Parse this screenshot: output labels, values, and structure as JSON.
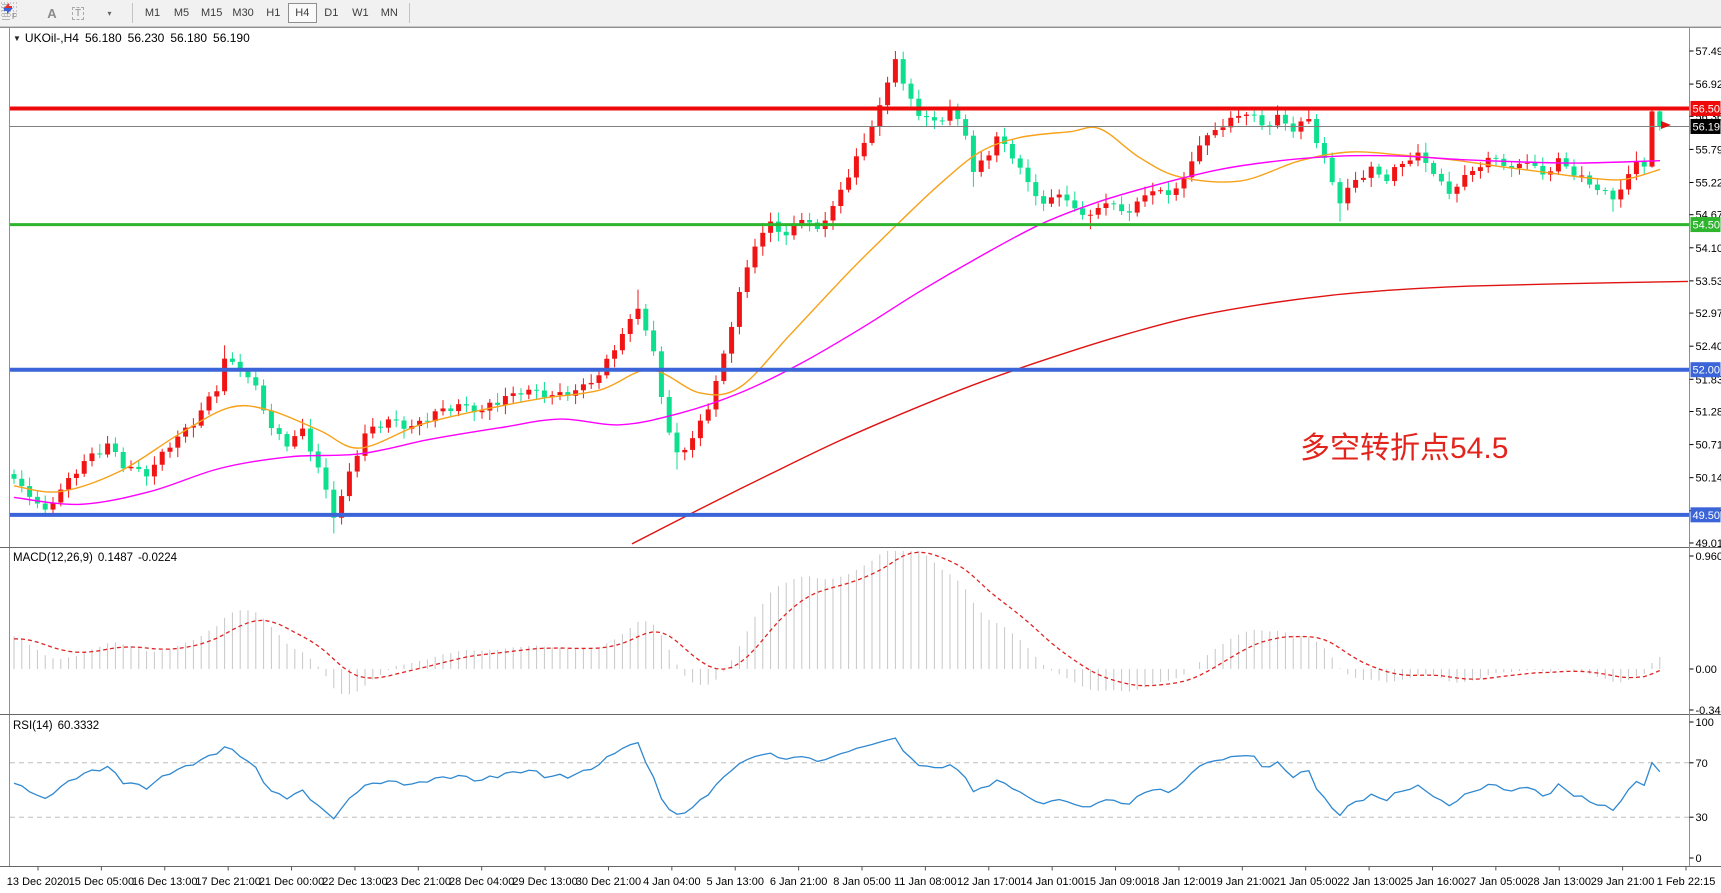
{
  "toolbar": {
    "fib_tool_label": "F",
    "text_tool_a": "A",
    "text_tool_t": "T",
    "dropdown_caret": "▾",
    "timeframes": [
      "M1",
      "M5",
      "M15",
      "M30",
      "H1",
      "H4",
      "D1",
      "W1",
      "MN"
    ],
    "active_timeframe": "H4"
  },
  "chart_header": {
    "collapse_icon": "▼",
    "symbol_period": "UKOil-,H4",
    "open": "56.180",
    "high": "56.230",
    "low": "56.180",
    "close": "56.190"
  },
  "annotation": {
    "text": "多空转折点54.5",
    "color": "#e3241c"
  },
  "price_axis": {
    "ticks": [
      "57.490",
      "56.920",
      "56.365",
      "55.795",
      "55.225",
      "54.670",
      "54.100",
      "53.530",
      "52.975",
      "52.405",
      "51.835",
      "51.280",
      "50.710",
      "50.140",
      "49.570",
      "49.015"
    ],
    "boxes": [
      {
        "label": "56.500",
        "price": 56.5,
        "color": "#ee0a0a",
        "text_color": "#ffffff"
      },
      {
        "label": "56.190",
        "price": 56.19,
        "color": "#000000",
        "text_color": "#ffffff"
      },
      {
        "label": "54.500",
        "price": 54.5,
        "color": "#2db52d",
        "text_color": "#ffffff"
      },
      {
        "label": "52.000",
        "price": 52.0,
        "color": "#3a64d8",
        "text_color": "#ffffff"
      },
      {
        "label": "49.500",
        "price": 49.5,
        "color": "#3a64d8",
        "text_color": "#ffffff"
      }
    ]
  },
  "time_axis": {
    "labels": [
      "13 Dec 2020",
      "15 Dec 05:00",
      "16 Dec 13:00",
      "17 Dec 21:00",
      "21 Dec 00:00",
      "22 Dec 13:00",
      "23 Dec 21:00",
      "28 Dec 04:00",
      "29 Dec 13:00",
      "30 Dec 21:00",
      "4 Jan 04:00",
      "5 Jan 13:00",
      "6 Jan 21:00",
      "8 Jan 05:00",
      "11 Jan 08:00",
      "12 Jan 17:00",
      "14 Jan 01:00",
      "15 Jan 09:00",
      "18 Jan 12:00",
      "19 Jan 21:00",
      "21 Jan 05:00",
      "22 Jan 13:00",
      "25 Jan 16:00",
      "27 Jan 05:00",
      "28 Jan 13:00",
      "29 Jan 21:00",
      "1 Feb 22:15"
    ]
  },
  "macd_panel": {
    "label": "MACD(12,26,9)",
    "value": "0.1487",
    "signal_value": "-0.0224"
  },
  "rsi_panel": {
    "label": "RSI(14)",
    "value": "60.3332"
  },
  "chart_data": {
    "type": "candlestick",
    "symbol": "UKOil-",
    "timeframe": "H4",
    "current_ohlc": {
      "open": 56.18,
      "high": 56.23,
      "low": 56.18,
      "close": 56.19
    },
    "price_range": [
      49.015,
      57.49
    ],
    "hlines": [
      {
        "price": 56.5,
        "color": "#ee0a0a",
        "width": 4
      },
      {
        "price": 56.19,
        "color": "#808080",
        "width": 1
      },
      {
        "price": 54.5,
        "color": "#2db52d",
        "width": 3
      },
      {
        "price": 52.0,
        "color": "#3a64d8",
        "width": 4
      },
      {
        "price": 49.5,
        "color": "#3a64d8",
        "width": 4
      }
    ],
    "candles": {
      "count": 212,
      "up_color": "#f01414",
      "down_color": "#0cdf8e",
      "close_keypoints": [
        [
          0,
          50.1
        ],
        [
          2,
          49.85
        ],
        [
          4,
          49.55
        ],
        [
          6,
          49.95
        ],
        [
          9,
          50.4
        ],
        [
          12,
          50.7
        ],
        [
          14,
          50.35
        ],
        [
          17,
          50.2
        ],
        [
          20,
          50.7
        ],
        [
          23,
          51.1
        ],
        [
          26,
          51.7
        ],
        [
          27,
          52.2
        ],
        [
          29,
          52.0
        ],
        [
          31,
          51.7
        ],
        [
          33,
          51.0
        ],
        [
          35,
          50.7
        ],
        [
          37,
          50.95
        ],
        [
          39,
          50.3
        ],
        [
          41,
          49.45
        ],
        [
          43,
          50.2
        ],
        [
          45,
          50.9
        ],
        [
          48,
          51.15
        ],
        [
          51,
          51.0
        ],
        [
          54,
          51.25
        ],
        [
          57,
          51.4
        ],
        [
          60,
          51.3
        ],
        [
          63,
          51.55
        ],
        [
          66,
          51.65
        ],
        [
          69,
          51.55
        ],
        [
          72,
          51.65
        ],
        [
          75,
          51.9
        ],
        [
          77,
          52.4
        ],
        [
          80,
          53.05
        ],
        [
          82,
          52.3
        ],
        [
          84,
          50.9
        ],
        [
          85,
          50.55
        ],
        [
          87,
          50.8
        ],
        [
          89,
          51.35
        ],
        [
          91,
          52.25
        ],
        [
          93,
          53.3
        ],
        [
          95,
          54.15
        ],
        [
          97,
          54.55
        ],
        [
          99,
          54.3
        ],
        [
          101,
          54.65
        ],
        [
          103,
          54.4
        ],
        [
          105,
          54.8
        ],
        [
          107,
          55.35
        ],
        [
          109,
          55.9
        ],
        [
          111,
          56.55
        ],
        [
          113,
          57.35
        ],
        [
          114,
          56.9
        ],
        [
          116,
          56.4
        ],
        [
          118,
          56.25
        ],
        [
          120,
          56.45
        ],
        [
          122,
          56.1
        ],
        [
          123,
          55.4
        ],
        [
          125,
          55.75
        ],
        [
          126,
          56.0
        ],
        [
          128,
          55.7
        ],
        [
          130,
          55.2
        ],
        [
          132,
          54.85
        ],
        [
          134,
          55.05
        ],
        [
          136,
          54.75
        ],
        [
          138,
          54.65
        ],
        [
          140,
          54.9
        ],
        [
          142,
          54.7
        ],
        [
          144,
          54.85
        ],
        [
          146,
          55.1
        ],
        [
          148,
          55.0
        ],
        [
          150,
          55.3
        ],
        [
          152,
          55.9
        ],
        [
          154,
          56.1
        ],
        [
          156,
          56.3
        ],
        [
          158,
          56.45
        ],
        [
          160,
          56.2
        ],
        [
          162,
          56.35
        ],
        [
          164,
          56.15
        ],
        [
          166,
          56.3
        ],
        [
          168,
          55.6
        ],
        [
          170,
          54.9
        ],
        [
          172,
          55.25
        ],
        [
          174,
          55.45
        ],
        [
          176,
          55.3
        ],
        [
          178,
          55.55
        ],
        [
          180,
          55.7
        ],
        [
          182,
          55.4
        ],
        [
          184,
          55.05
        ],
        [
          186,
          55.3
        ],
        [
          188,
          55.55
        ],
        [
          190,
          55.65
        ],
        [
          192,
          55.45
        ],
        [
          194,
          55.6
        ],
        [
          196,
          55.35
        ],
        [
          198,
          55.6
        ],
        [
          200,
          55.4
        ],
        [
          202,
          55.2
        ],
        [
          205,
          54.95
        ],
        [
          207,
          55.3
        ],
        [
          208,
          55.6
        ],
        [
          209,
          55.55
        ],
        [
          210,
          56.45
        ],
        [
          211,
          56.19
        ]
      ],
      "exact_closes": {
        "41": 49.45,
        "80": 53.05,
        "113": 57.35,
        "210": 56.45,
        "211": 56.19
      },
      "wick_overrides": {
        "27": {
          "high": 52.42
        },
        "41": {
          "low": 49.18
        },
        "80": {
          "high": 53.38
        },
        "85": {
          "low": 50.28
        },
        "113": {
          "high": 57.49
        },
        "123": {
          "low": 55.15
        },
        "138": {
          "low": 54.42
        },
        "170": {
          "low": 54.55
        },
        "205": {
          "low": 54.72
        },
        "210": {
          "high": 56.5,
          "low": 55.48
        },
        "211": {
          "high": 56.47,
          "low": 56.12
        }
      }
    },
    "moving_averages": [
      {
        "name": "ma-fast",
        "color": "#f7a21a",
        "points": [
          [
            14,
            50.0
          ],
          [
            60,
            49.9
          ],
          [
            120,
            50.25
          ],
          [
            180,
            50.9
          ],
          [
            230,
            51.35
          ],
          [
            270,
            51.3
          ],
          [
            320,
            50.95
          ],
          [
            360,
            50.65
          ],
          [
            420,
            51.05
          ],
          [
            480,
            51.3
          ],
          [
            540,
            51.5
          ],
          [
            600,
            51.65
          ],
          [
            650,
            52.0
          ],
          [
            700,
            51.6
          ],
          [
            740,
            51.7
          ],
          [
            790,
            52.6
          ],
          [
            850,
            53.7
          ],
          [
            900,
            54.55
          ],
          [
            940,
            55.2
          ],
          [
            980,
            55.75
          ],
          [
            1020,
            56.0
          ],
          [
            1070,
            56.1
          ],
          [
            1100,
            56.15
          ],
          [
            1140,
            55.65
          ],
          [
            1180,
            55.32
          ],
          [
            1240,
            55.25
          ],
          [
            1300,
            55.6
          ],
          [
            1350,
            55.75
          ],
          [
            1400,
            55.7
          ],
          [
            1450,
            55.62
          ],
          [
            1500,
            55.5
          ],
          [
            1545,
            55.4
          ],
          [
            1590,
            55.3
          ],
          [
            1625,
            55.28
          ],
          [
            1660,
            55.45
          ]
        ]
      },
      {
        "name": "ma-medium",
        "color": "#ff00ff",
        "points": [
          [
            14,
            49.8
          ],
          [
            80,
            49.68
          ],
          [
            150,
            49.9
          ],
          [
            220,
            50.3
          ],
          [
            290,
            50.5
          ],
          [
            360,
            50.55
          ],
          [
            430,
            50.8
          ],
          [
            500,
            51.0
          ],
          [
            560,
            51.15
          ],
          [
            620,
            51.05
          ],
          [
            680,
            51.25
          ],
          [
            740,
            51.6
          ],
          [
            800,
            52.1
          ],
          [
            860,
            52.7
          ],
          [
            920,
            53.35
          ],
          [
            980,
            53.95
          ],
          [
            1040,
            54.5
          ],
          [
            1100,
            54.9
          ],
          [
            1160,
            55.2
          ],
          [
            1220,
            55.45
          ],
          [
            1280,
            55.6
          ],
          [
            1340,
            55.68
          ],
          [
            1400,
            55.68
          ],
          [
            1460,
            55.62
          ],
          [
            1520,
            55.58
          ],
          [
            1580,
            55.56
          ],
          [
            1660,
            55.6
          ]
        ]
      },
      {
        "name": "ma-slow",
        "color": "#e01212",
        "points": [
          [
            632,
            49.0
          ],
          [
            700,
            49.6
          ],
          [
            770,
            50.2
          ],
          [
            840,
            50.78
          ],
          [
            910,
            51.3
          ],
          [
            980,
            51.78
          ],
          [
            1050,
            52.2
          ],
          [
            1120,
            52.58
          ],
          [
            1190,
            52.9
          ],
          [
            1260,
            53.12
          ],
          [
            1330,
            53.28
          ],
          [
            1400,
            53.38
          ],
          [
            1470,
            53.44
          ],
          [
            1560,
            53.48
          ],
          [
            1688,
            53.52
          ]
        ]
      }
    ],
    "macd": {
      "params": [
        12,
        26,
        9
      ],
      "histogram_color": "#c6c6c6",
      "signal_color": "#e02424",
      "axis_labels": [
        "0.9604",
        "0.00",
        "-0.3477"
      ],
      "axis_values": [
        0.9604,
        0,
        -0.3477
      ],
      "display_values": [
        0.1487,
        -0.0224
      ],
      "seed_offset": 0.3,
      "signal_seed": 0.25
    },
    "rsi": {
      "period": 14,
      "color": "#2f88d0",
      "axis_labels": [
        "100",
        "70",
        "30",
        "0"
      ],
      "axis_values": [
        100,
        70,
        30,
        0
      ],
      "levels": [
        70,
        30
      ],
      "current": 60.3332
    }
  }
}
